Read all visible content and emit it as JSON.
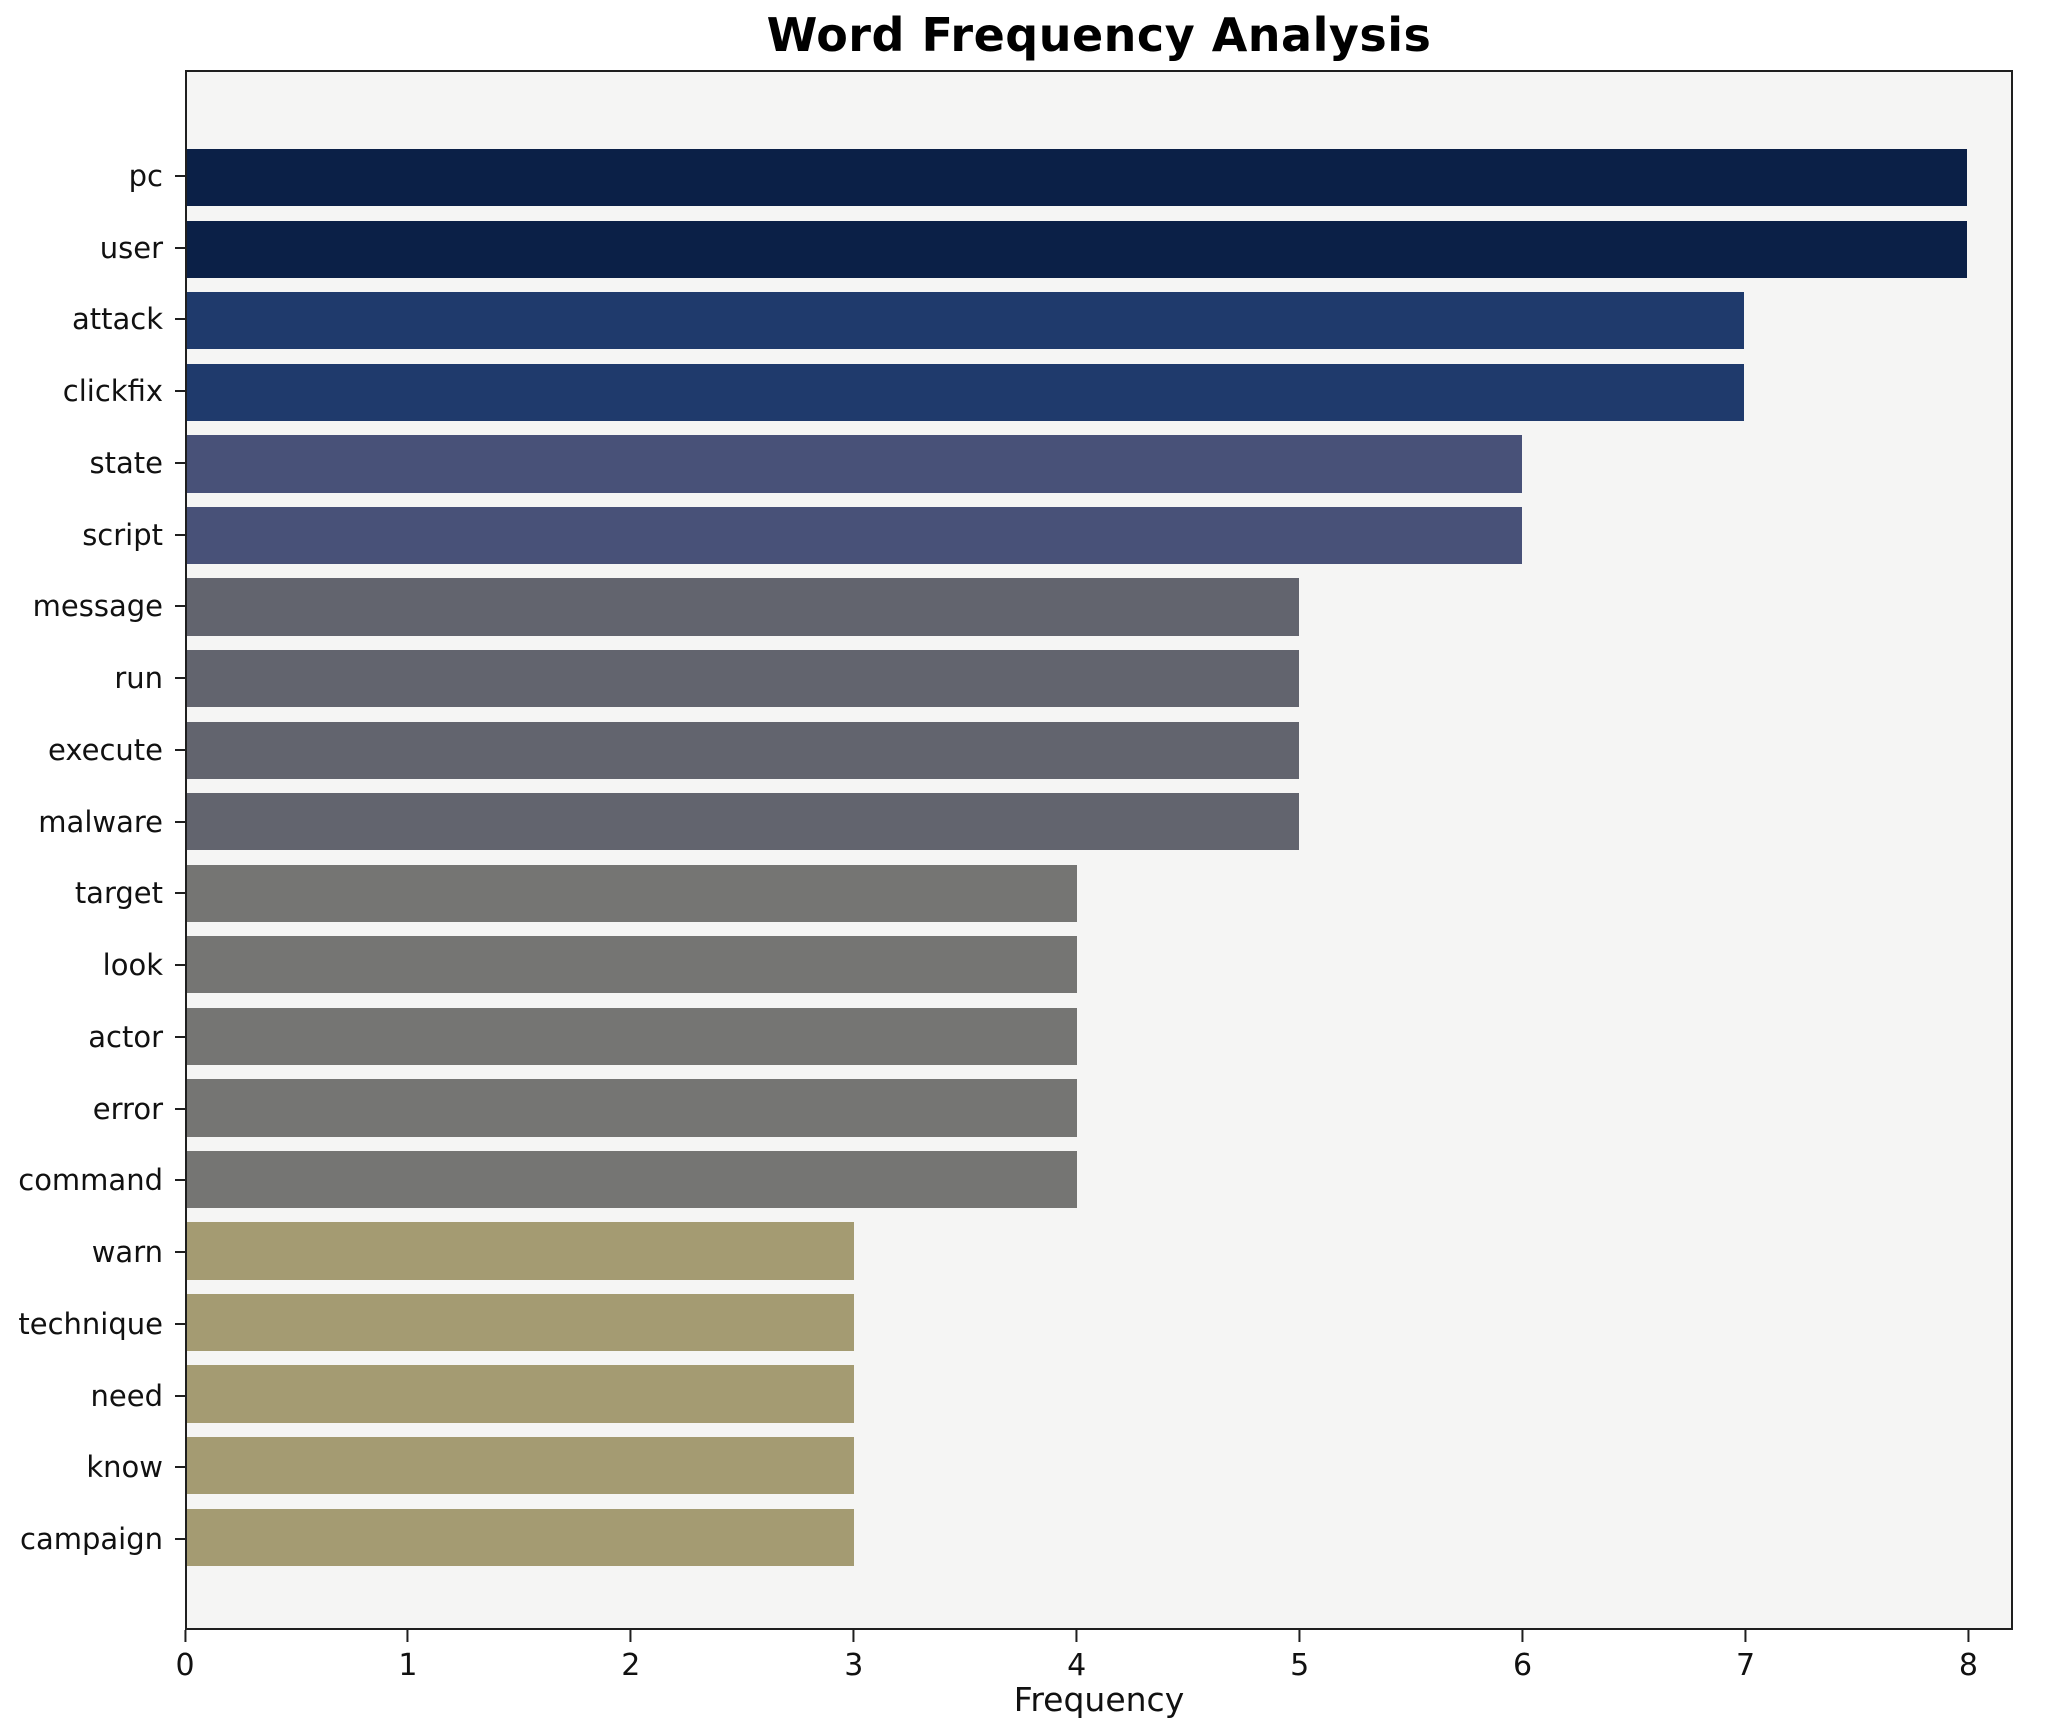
{
  "chart_data": {
    "type": "bar",
    "orientation": "horizontal",
    "title": "Word Frequency Analysis",
    "xlabel": "Frequency",
    "ylabel": "",
    "xlim": [
      0,
      8.2
    ],
    "xticks": [
      0,
      1,
      2,
      3,
      4,
      5,
      6,
      7,
      8
    ],
    "grid": false,
    "legend": "none",
    "plot_background": "#f5f5f4",
    "categories": [
      "pc",
      "user",
      "attack",
      "clickfix",
      "state",
      "script",
      "message",
      "run",
      "execute",
      "malware",
      "target",
      "look",
      "actor",
      "error",
      "command",
      "warn",
      "technique",
      "need",
      "know",
      "campaign"
    ],
    "values": [
      8,
      8,
      7,
      7,
      6,
      6,
      5,
      5,
      5,
      5,
      4,
      4,
      4,
      4,
      4,
      3,
      3,
      3,
      3,
      3
    ],
    "bar_colors": [
      "#0b2047",
      "#0b2047",
      "#1f3a6c",
      "#1f3a6c",
      "#485178",
      "#485178",
      "#62646e",
      "#62646e",
      "#62646e",
      "#62646e",
      "#757573",
      "#757573",
      "#757573",
      "#757573",
      "#757573",
      "#a49b72",
      "#a49b72",
      "#a49b72",
      "#a49b72",
      "#a49b72"
    ]
  }
}
